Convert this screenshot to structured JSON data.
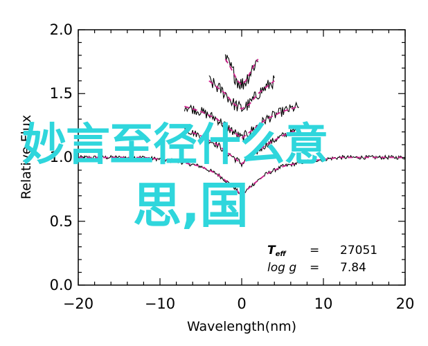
{
  "chart_data": {
    "type": "line",
    "title": "",
    "xlabel": "Wavelength(nm)",
    "ylabel": "Relative Flux",
    "xlim": [
      -20,
      20
    ],
    "ylim": [
      0.0,
      2.0
    ],
    "x_ticks": [
      "−20",
      "−10",
      "0",
      "10",
      "20"
    ],
    "y_ticks": [
      "0.0",
      "0.5",
      "1.0",
      "1.5",
      "2.0"
    ],
    "grid": false,
    "series": [
      {
        "style": "dashed",
        "color": "#cc1f8a",
        "offset_index": 0,
        "x": [
          -20,
          -12,
          -8,
          -5,
          -3,
          -1,
          0,
          1,
          3,
          5,
          8,
          12,
          20
        ],
        "y": [
          1.0,
          1.0,
          0.97,
          0.93,
          0.87,
          0.77,
          0.7,
          0.77,
          0.87,
          0.93,
          0.97,
          1.0,
          1.0
        ]
      },
      {
        "style": "dashed",
        "color": "#cc1f8a",
        "offset_index": 1,
        "x": [
          -7,
          -5,
          -3,
          -1,
          0,
          1,
          3,
          5,
          7
        ],
        "y": [
          1.22,
          1.17,
          1.1,
          1.0,
          0.95,
          1.0,
          1.1,
          1.17,
          1.22
        ]
      },
      {
        "style": "dashed",
        "color": "#cc1f8a",
        "offset_index": 2,
        "x": [
          -7,
          -5,
          -3,
          -1,
          0,
          1,
          3,
          5,
          7
        ],
        "y": [
          1.4,
          1.36,
          1.3,
          1.2,
          1.15,
          1.2,
          1.3,
          1.36,
          1.4
        ]
      },
      {
        "style": "dashed",
        "color": "#cc1f8a",
        "offset_index": 3,
        "x": [
          -4,
          -3,
          -2,
          -1,
          0,
          1,
          2,
          3,
          4
        ],
        "y": [
          1.6,
          1.55,
          1.5,
          1.42,
          1.38,
          1.42,
          1.5,
          1.55,
          1.6
        ]
      },
      {
        "style": "dashed",
        "color": "#cc1f8a",
        "offset_index": 4,
        "x": [
          -2,
          -1.5,
          -1,
          -0.5,
          0,
          0.5,
          1,
          1.5,
          2
        ],
        "y": [
          1.77,
          1.72,
          1.66,
          1.6,
          1.57,
          1.6,
          1.66,
          1.72,
          1.77
        ]
      }
    ],
    "annotations": {
      "teff_label": "T",
      "teff_sub": "eff",
      "teff_eq": "=",
      "teff_value": "27051",
      "logg_label": "log g",
      "logg_eq": "=",
      "logg_value": "7.84"
    }
  },
  "overlay_text": {
    "line1": "妙言至径什么意",
    "line2": "思,国"
  },
  "colors": {
    "fit": "#cc1f8a",
    "data": "#000000",
    "overlay": "#2fd6dc"
  }
}
